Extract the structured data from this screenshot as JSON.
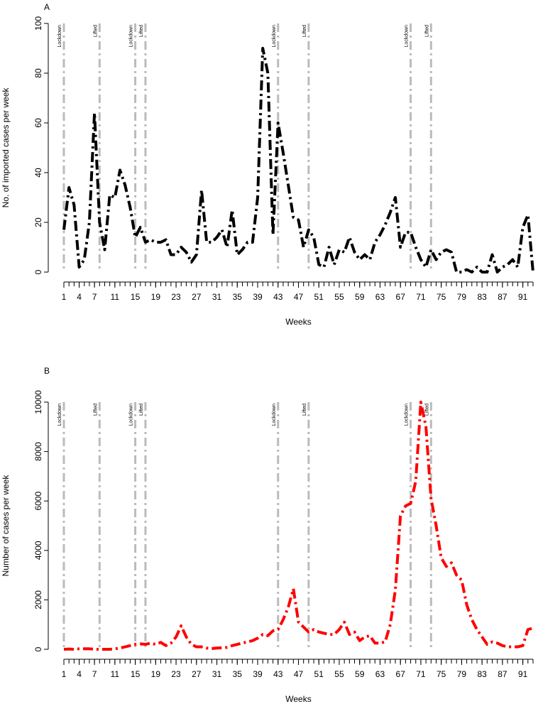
{
  "chart_data": [
    {
      "type": "line",
      "panel": "A",
      "y_label": "No. of imported cases per week",
      "x_label": "Weeks",
      "x": [
        1,
        2,
        3,
        4,
        5,
        6,
        7,
        8,
        9,
        10,
        11,
        12,
        13,
        14,
        15,
        16,
        17,
        18,
        19,
        20,
        21,
        22,
        23,
        24,
        25,
        26,
        27,
        28,
        29,
        30,
        31,
        32,
        33,
        34,
        35,
        36,
        37,
        38,
        39,
        40,
        41,
        42,
        43,
        44,
        45,
        46,
        47,
        48,
        49,
        50,
        51,
        52,
        53,
        54,
        55,
        56,
        57,
        58,
        59,
        60,
        61,
        62,
        63,
        64,
        65,
        66,
        67,
        68,
        69,
        70,
        71,
        72,
        73,
        74,
        75,
        76,
        77,
        78,
        79,
        80,
        81,
        82,
        83,
        84,
        85,
        86,
        87,
        88,
        89,
        90,
        91,
        92,
        93
      ],
      "series": [
        {
          "color": "#000000",
          "values": [
            17,
            34,
            27,
            2,
            5,
            20,
            64,
            20,
            9,
            31,
            30,
            41,
            35,
            26,
            14,
            18,
            12,
            13,
            12,
            12,
            13,
            7,
            7,
            10,
            8,
            4,
            7,
            33,
            12,
            12,
            14,
            17,
            10,
            25,
            7,
            9,
            12,
            12,
            30,
            90,
            80,
            15,
            60,
            48,
            35,
            22,
            21,
            10,
            17,
            14,
            3,
            2,
            10,
            3,
            9,
            8,
            14,
            8,
            5,
            7,
            5,
            12,
            15,
            19,
            24,
            30,
            10,
            16,
            16,
            10,
            5,
            2,
            9,
            5,
            8,
            9,
            8,
            0,
            0,
            1,
            0,
            2,
            0,
            0,
            7,
            0,
            2,
            3,
            5,
            2,
            18,
            23,
            0
          ]
        }
      ],
      "xlim": [
        1,
        93
      ],
      "xticks": [
        1,
        4,
        7,
        11,
        15,
        19,
        23,
        27,
        31,
        35,
        39,
        43,
        47,
        51,
        55,
        59,
        63,
        67,
        71,
        75,
        79,
        83,
        87,
        91
      ],
      "ylim": [
        0,
        100
      ],
      "yticks": [
        0,
        20,
        40,
        60,
        80,
        100
      ],
      "events": [
        {
          "week": 1,
          "label": "Lockdown"
        },
        {
          "week": 8,
          "label": "Lifted"
        },
        {
          "week": 15,
          "label": "Lockdown"
        },
        {
          "week": 17,
          "label": "Lifted"
        },
        {
          "week": 43,
          "label": "Lockdown"
        },
        {
          "week": 49,
          "label": "Lifted"
        },
        {
          "week": 69,
          "label": "Lockdown"
        },
        {
          "week": 73,
          "label": "Lifted"
        }
      ],
      "event_color": "#bbbbbb"
    },
    {
      "type": "line",
      "panel": "B",
      "y_label": "Number of cases per week",
      "x_label": "Weeks",
      "x": [
        1,
        2,
        3,
        4,
        5,
        6,
        7,
        8,
        9,
        10,
        11,
        12,
        13,
        14,
        15,
        16,
        17,
        18,
        19,
        20,
        21,
        22,
        23,
        24,
        25,
        26,
        27,
        28,
        29,
        30,
        31,
        32,
        33,
        34,
        35,
        36,
        37,
        38,
        39,
        40,
        41,
        42,
        43,
        44,
        45,
        46,
        47,
        48,
        49,
        50,
        51,
        52,
        53,
        54,
        55,
        56,
        57,
        58,
        59,
        60,
        61,
        62,
        63,
        64,
        65,
        66,
        67,
        68,
        69,
        70,
        71,
        72,
        73,
        74,
        75,
        76,
        77,
        78,
        79,
        80,
        81,
        82,
        83,
        84,
        85,
        86,
        87,
        88,
        89,
        90,
        91,
        92,
        93
      ],
      "series": [
        {
          "color": "#ff0000",
          "values": [
            0,
            10,
            0,
            20,
            20,
            20,
            0,
            0,
            0,
            0,
            20,
            50,
            100,
            150,
            200,
            220,
            200,
            250,
            200,
            280,
            150,
            250,
            500,
            950,
            500,
            200,
            100,
            100,
            50,
            30,
            50,
            60,
            80,
            150,
            200,
            250,
            300,
            350,
            450,
            600,
            550,
            750,
            800,
            1200,
            1700,
            2450,
            1100,
            900,
            700,
            800,
            700,
            650,
            600,
            600,
            800,
            1100,
            600,
            700,
            350,
            500,
            550,
            250,
            250,
            300,
            1000,
            2400,
            5400,
            5800,
            5900,
            6800,
            10000,
            9000,
            6100,
            5000,
            3700,
            3350,
            3500,
            3000,
            2800,
            1800,
            1200,
            800,
            500,
            200,
            300,
            250,
            150,
            100,
            100,
            100,
            150,
            800,
            850
          ]
        }
      ],
      "xlim": [
        1,
        93
      ],
      "xticks": [
        1,
        4,
        7,
        11,
        15,
        19,
        23,
        27,
        31,
        35,
        39,
        43,
        47,
        51,
        55,
        59,
        63,
        67,
        71,
        75,
        79,
        83,
        87,
        91
      ],
      "ylim": [
        0,
        10000
      ],
      "yticks": [
        0,
        2000,
        4000,
        6000,
        8000,
        10000
      ],
      "events": [
        {
          "week": 1,
          "label": "Lockdown"
        },
        {
          "week": 8,
          "label": "Lifted"
        },
        {
          "week": 15,
          "label": "Lockdown"
        },
        {
          "week": 17,
          "label": "Lifted"
        },
        {
          "week": 43,
          "label": "Lockdown"
        },
        {
          "week": 49,
          "label": "Lifted"
        },
        {
          "week": 69,
          "label": "Lockdown"
        },
        {
          "week": 73,
          "label": "Lifted"
        }
      ],
      "event_color": "#bbbbbb"
    }
  ]
}
